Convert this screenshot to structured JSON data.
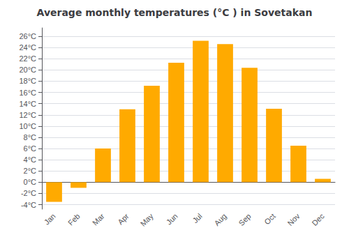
{
  "chart_data": {
    "type": "bar",
    "title": "Average monthly temperatures (°C ) in Sovetakan",
    "categories": [
      "Jan",
      "Feb",
      "Mar",
      "Apr",
      "May",
      "Jun",
      "Jul",
      "Aug",
      "Sep",
      "Oct",
      "Nov",
      "Dec"
    ],
    "values": [
      -3.5,
      -1.0,
      6.0,
      13.0,
      17.2,
      21.3,
      25.2,
      24.6,
      20.4,
      13.1,
      6.5,
      0.6
    ],
    "color": "#FFAA00",
    "ylim": [
      -4.8,
      27.5
    ],
    "yticks": [
      {
        "value": -4,
        "label": "-4°C"
      },
      {
        "value": -2,
        "label": "-2°C"
      },
      {
        "value": 0,
        "label": "0°C"
      },
      {
        "value": 2,
        "label": "2°C"
      },
      {
        "value": 4,
        "label": "4°C"
      },
      {
        "value": 6,
        "label": "6°C"
      },
      {
        "value": 8,
        "label": "8°C"
      },
      {
        "value": 10,
        "label": "10°C"
      },
      {
        "value": 12,
        "label": "12°C"
      },
      {
        "value": 14,
        "label": "14°C"
      },
      {
        "value": 16,
        "label": "16°C"
      },
      {
        "value": 18,
        "label": "18°C"
      },
      {
        "value": 20,
        "label": "20°C"
      },
      {
        "value": 22,
        "label": "22°C"
      },
      {
        "value": 24,
        "label": "24°C"
      },
      {
        "value": 26,
        "label": "26°C"
      }
    ],
    "grid": true
  }
}
